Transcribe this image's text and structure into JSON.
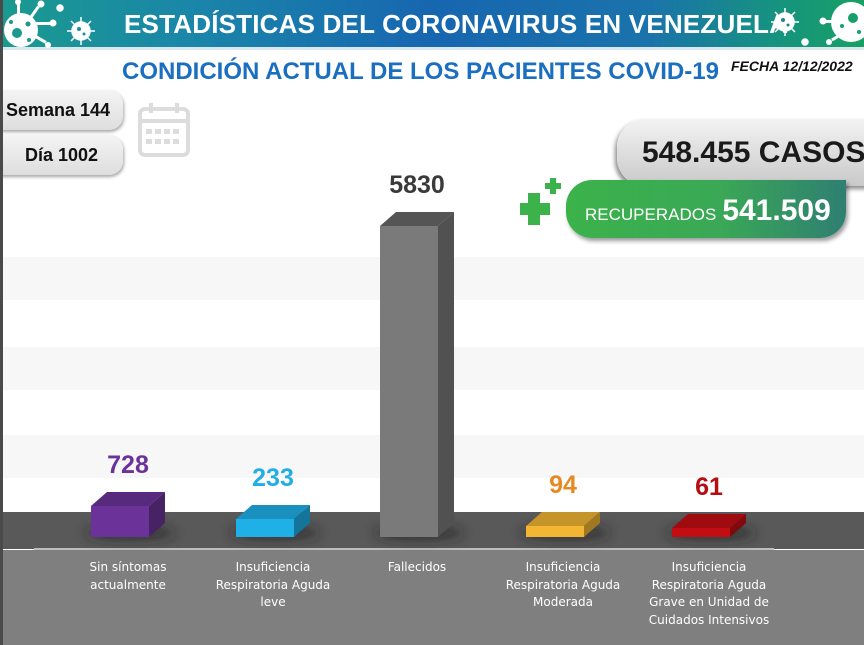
{
  "header": {
    "title": "ESTADÍSTICAS DEL CORONAVIRUS EN VENEZUELA",
    "icons": [
      "virus-icon",
      "virus-icon"
    ]
  },
  "subtitle": "CONDICIÓN ACTUAL DE LOS PACIENTES COVID-19",
  "fecha": "FECHA 12/12/2022",
  "semana": "Semana 144",
  "dia": "Día 1002",
  "calendar_icon": "calendar-icon",
  "totals": {
    "casos": "548.455 CASOS",
    "recuperados_label": "RECUPERADOS",
    "recuperados_value": "541.509",
    "plus_icon": "medical-plus-icon"
  },
  "colors": {
    "header_start": "#1a9a8e",
    "header_mid": "#1766b0",
    "header_end": "#18a064",
    "subtitle": "#1a6fc0",
    "recuperados_green": "#3bb24a"
  },
  "chart_data": {
    "type": "bar",
    "style": "3d-column",
    "title": "CONDICIÓN ACTUAL DE LOS PACIENTES COVID-19",
    "xlabel": "",
    "ylabel": "",
    "grid": true,
    "legend": "none",
    "categories": [
      "Sin síntomas actualmente",
      "Insuficiencia Respiratoria Aguda leve",
      "Fallecidos",
      "Insuficiencia Respiratoria Aguda Moderada",
      "Insuficiencia Respiratoria Aguda Grave en Unidad de Cuidados Intensivos"
    ],
    "category_lines": [
      [
        "Sin síntomas",
        "actualmente"
      ],
      [
        "Insuficiencia",
        "Respiratoria Aguda",
        "leve"
      ],
      [
        "Fallecidos"
      ],
      [
        "Insuficiencia",
        "Respiratoria Aguda",
        "Moderada"
      ],
      [
        "Insuficiencia",
        "Respiratoria Aguda",
        "Grave en Unidad de",
        "Cuidados Intensivos"
      ]
    ],
    "values": [
      728,
      233,
      5830,
      94,
      61
    ],
    "value_labels": [
      "728",
      "233",
      "5830",
      "94",
      "61"
    ],
    "bar_colors": [
      "#6b3399",
      "#1fb0e8",
      "#7a7a7a",
      "#f2b632",
      "#c20e12"
    ],
    "label_colors": [
      "#6b3399",
      "#21aee8",
      "#3a3a3a",
      "#e88a24",
      "#b50d12"
    ],
    "ylim": [
      0,
      6600
    ]
  }
}
